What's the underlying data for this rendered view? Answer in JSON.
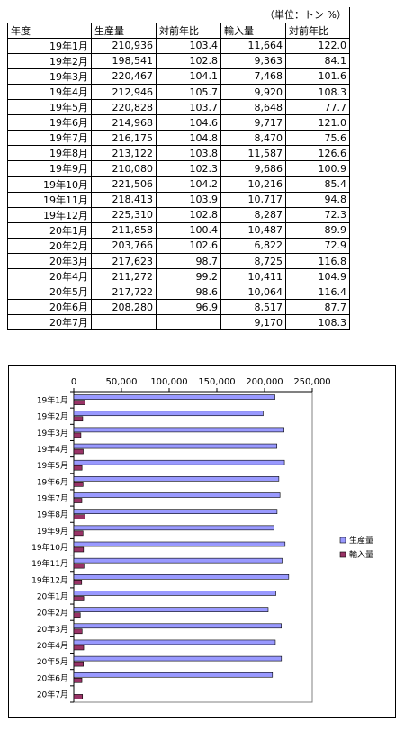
{
  "table": {
    "unit_note": "（単位：トン %）",
    "headers": [
      "年度",
      "生産量",
      "対前年比",
      "輸入量",
      "対前年比"
    ],
    "rows": [
      [
        "19年1月",
        "210,936",
        "103.4",
        "11,664",
        "122.0"
      ],
      [
        "19年2月",
        "198,541",
        "102.8",
        "9,363",
        "84.1"
      ],
      [
        "19年3月",
        "220,467",
        "104.1",
        "7,468",
        "101.6"
      ],
      [
        "19年4月",
        "212,946",
        "105.7",
        "9,920",
        "108.3"
      ],
      [
        "19年5月",
        "220,828",
        "103.7",
        "8,648",
        "77.7"
      ],
      [
        "19年6月",
        "214,968",
        "104.6",
        "9,717",
        "121.0"
      ],
      [
        "19年7月",
        "216,175",
        "104.8",
        "8,470",
        "75.6"
      ],
      [
        "19年8月",
        "213,122",
        "103.8",
        "11,587",
        "126.6"
      ],
      [
        "19年9月",
        "210,080",
        "102.3",
        "9,686",
        "100.9"
      ],
      [
        "19年10月",
        "221,506",
        "104.2",
        "10,216",
        "85.4"
      ],
      [
        "19年11月",
        "218,413",
        "103.9",
        "10,717",
        "94.8"
      ],
      [
        "19年12月",
        "225,310",
        "102.8",
        "8,287",
        "72.3"
      ],
      [
        "20年1月",
        "211,858",
        "100.4",
        "10,487",
        "89.9"
      ],
      [
        "20年2月",
        "203,766",
        "102.6",
        "6,822",
        "72.9"
      ],
      [
        "20年3月",
        "217,623",
        "98.7",
        "8,725",
        "116.8"
      ],
      [
        "20年4月",
        "211,272",
        "99.2",
        "10,411",
        "104.9"
      ],
      [
        "20年5月",
        "217,722",
        "98.6",
        "10,064",
        "116.4"
      ],
      [
        "20年6月",
        "208,280",
        "96.9",
        "8,517",
        "87.7"
      ],
      [
        "20年7月",
        "",
        "",
        "9,170",
        "108.3"
      ]
    ]
  },
  "chart_data": {
    "type": "bar",
    "orientation": "horizontal",
    "categories": [
      "19年1月",
      "19年2月",
      "19年3月",
      "19年4月",
      "19年5月",
      "19年6月",
      "19年7月",
      "19年8月",
      "19年9月",
      "19年10月",
      "19年11月",
      "19年12月",
      "20年1月",
      "20年2月",
      "20年3月",
      "20年4月",
      "20年5月",
      "20年6月",
      "20年7月"
    ],
    "series": [
      {
        "name": "生産量",
        "color": "#9999FF",
        "values": [
          210936,
          198541,
          220467,
          212946,
          220828,
          214968,
          216175,
          213122,
          210080,
          221506,
          218413,
          225310,
          211858,
          203766,
          217623,
          211272,
          217722,
          208280,
          null
        ]
      },
      {
        "name": "輸入量",
        "color": "#993366",
        "values": [
          11664,
          9363,
          7468,
          9920,
          8648,
          9717,
          8470,
          11587,
          9686,
          10216,
          10717,
          8287,
          10487,
          6822,
          8725,
          10411,
          10064,
          8517,
          9170
        ]
      }
    ],
    "xlim": [
      0,
      250000
    ],
    "x_ticks": [
      "0",
      "50,000",
      "100,000",
      "150,000",
      "200,000",
      "250,000"
    ],
    "x_tick_values": [
      0,
      50000,
      100000,
      150000,
      200000,
      250000
    ],
    "x_axis_position": "top",
    "category_order": "top-to-bottom",
    "grid": false,
    "legend": "right",
    "title": "",
    "xlabel": "",
    "ylabel": ""
  }
}
